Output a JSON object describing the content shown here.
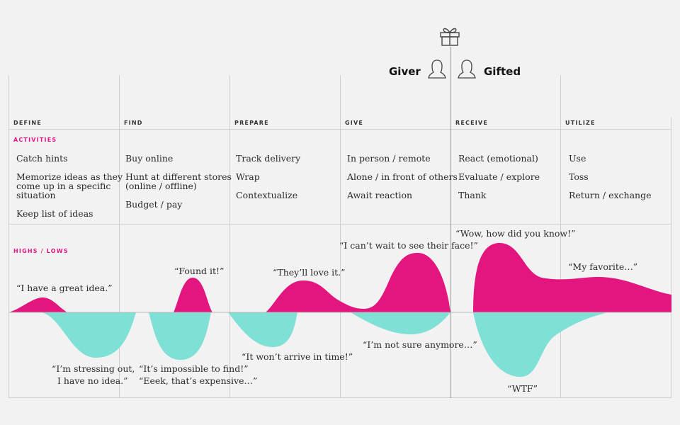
{
  "header": {
    "giver_label": "Giver",
    "gifted_label": "Gifted",
    "gift_icon": "gift-icon",
    "person_icon": "person-icon"
  },
  "phases": [
    "DEFINE",
    "FIND",
    "PREPARE",
    "GIVE",
    "RECEIVE",
    "UTILIZE"
  ],
  "sections": {
    "activities_label": "ACTIVITIES",
    "highs_lows_label": "HIGHS / LOWS"
  },
  "activities": {
    "define": [
      "Catch hints",
      "Memorize ideas as they\ncome up in a specific\nsituation",
      "Keep list of ideas"
    ],
    "find": [
      "Buy online",
      "Hunt at different stores\n(online / offline)",
      "Budget / pay"
    ],
    "prepare": [
      "Track delivery",
      "Wrap",
      "Contextualize"
    ],
    "give": [
      "In person / remote",
      "Alone / in front of others",
      "Await reaction"
    ],
    "receive": [
      "React (emotional)",
      "Evaluate / explore",
      "Thank"
    ],
    "utilize": [
      "Use",
      "Toss",
      "Return / exchange"
    ]
  },
  "highs": [
    "“I have a great idea.”",
    "“Found it!”",
    "“They’ll love it.”",
    "“I can’t wait to see their face!”",
    "“Wow, how did you know!”",
    "“My favorite…”"
  ],
  "lows": [
    "“I’m stressing out,\n  I have no idea.”",
    "“It’s impossible to find!”\n“Eeek, that’s expensive…”",
    "“It won’t arrive in time!”",
    "“I’m not sure anymore…”",
    "“WTF”"
  ],
  "colors": {
    "high": "#e3167f",
    "low": "#7fe0d5",
    "accent": "#e3167f",
    "background": "#f2f2f2",
    "grid": "#cfcfcf"
  }
}
